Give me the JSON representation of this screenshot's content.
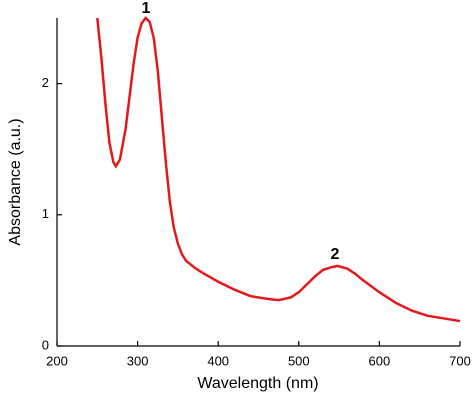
{
  "chart_data": {
    "type": "line",
    "x_label": "Wavelength (nm)",
    "y_label": "Absorbance (a.u.)",
    "annotations": [
      "1",
      "2"
    ],
    "x": [
      250,
      255,
      260,
      265,
      270,
      273,
      278,
      285,
      290,
      295,
      300,
      305,
      310,
      315,
      320,
      325,
      330,
      335,
      340,
      345,
      350,
      355,
      360,
      370,
      380,
      400,
      420,
      440,
      460,
      475,
      490,
      500,
      510,
      520,
      530,
      540,
      548,
      560,
      570,
      580,
      600,
      620,
      640,
      660,
      680,
      700
    ],
    "series": [
      {
        "color": "#e3191c",
        "values": [
          2.5,
          2.2,
          1.85,
          1.55,
          1.4,
          1.37,
          1.42,
          1.65,
          1.9,
          2.15,
          2.35,
          2.46,
          2.5,
          2.47,
          2.35,
          2.1,
          1.75,
          1.4,
          1.1,
          0.9,
          0.78,
          0.7,
          0.65,
          0.6,
          0.56,
          0.49,
          0.43,
          0.38,
          0.36,
          0.35,
          0.37,
          0.41,
          0.47,
          0.53,
          0.58,
          0.6,
          0.61,
          0.59,
          0.55,
          0.5,
          0.41,
          0.33,
          0.27,
          0.23,
          0.21,
          0.19
        ]
      }
    ],
    "xlim": [
      200,
      700
    ],
    "ylim": [
      0,
      2.5
    ],
    "xticks": [
      200,
      300,
      400,
      500,
      600,
      700
    ],
    "yticks": [
      0,
      1,
      2
    ]
  }
}
